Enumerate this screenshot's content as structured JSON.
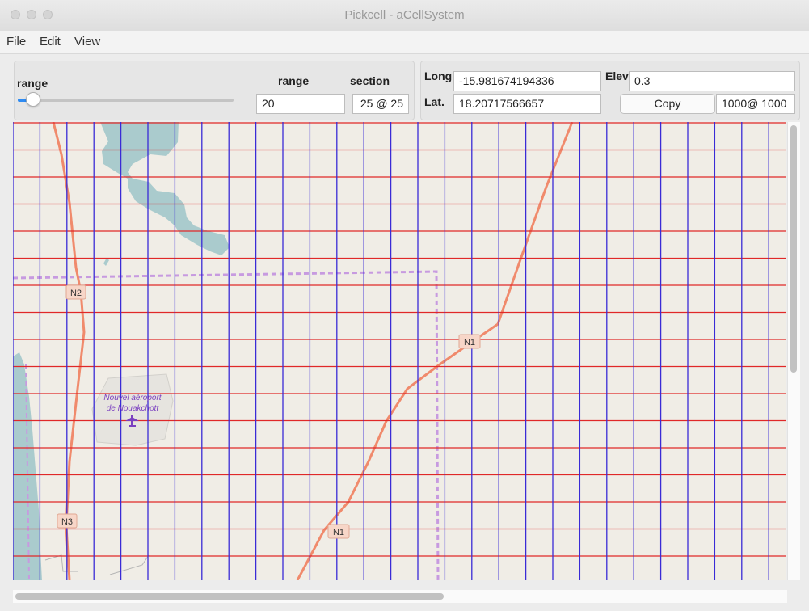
{
  "window": {
    "title": "Pickcell - aCellSystem"
  },
  "menubar": {
    "items": [
      "File",
      "Edit",
      "View"
    ]
  },
  "controls": {
    "range_slider_label": "range",
    "range_slider_value": 0.07,
    "range_label": "range",
    "range_value": "20",
    "section_label": "section",
    "section_value": "25 @ 25",
    "long_label": "Long",
    "long_value": "-15.981674194336",
    "lat_label": "Lat.",
    "lat_value": "18.20717566657",
    "elev_label": "Elev",
    "elev_value": "0.3",
    "copy_label": "Copy",
    "resolution_value": "1000@ 1000"
  },
  "map": {
    "road_labels": [
      "N2",
      "N1",
      "N3",
      "N1"
    ],
    "poi_label_line1": "Nouvel aéroport",
    "poi_label_line2": "de Nouakchott",
    "colors": {
      "land": "#f0ede6",
      "water": "#aacbcd",
      "road": "#f08a6c",
      "grid_vertical": "#3a2bd6",
      "grid_horizontal": "#e02828",
      "boundary": "#c79ae0"
    }
  },
  "icons": {
    "airport": "airplane-icon"
  }
}
